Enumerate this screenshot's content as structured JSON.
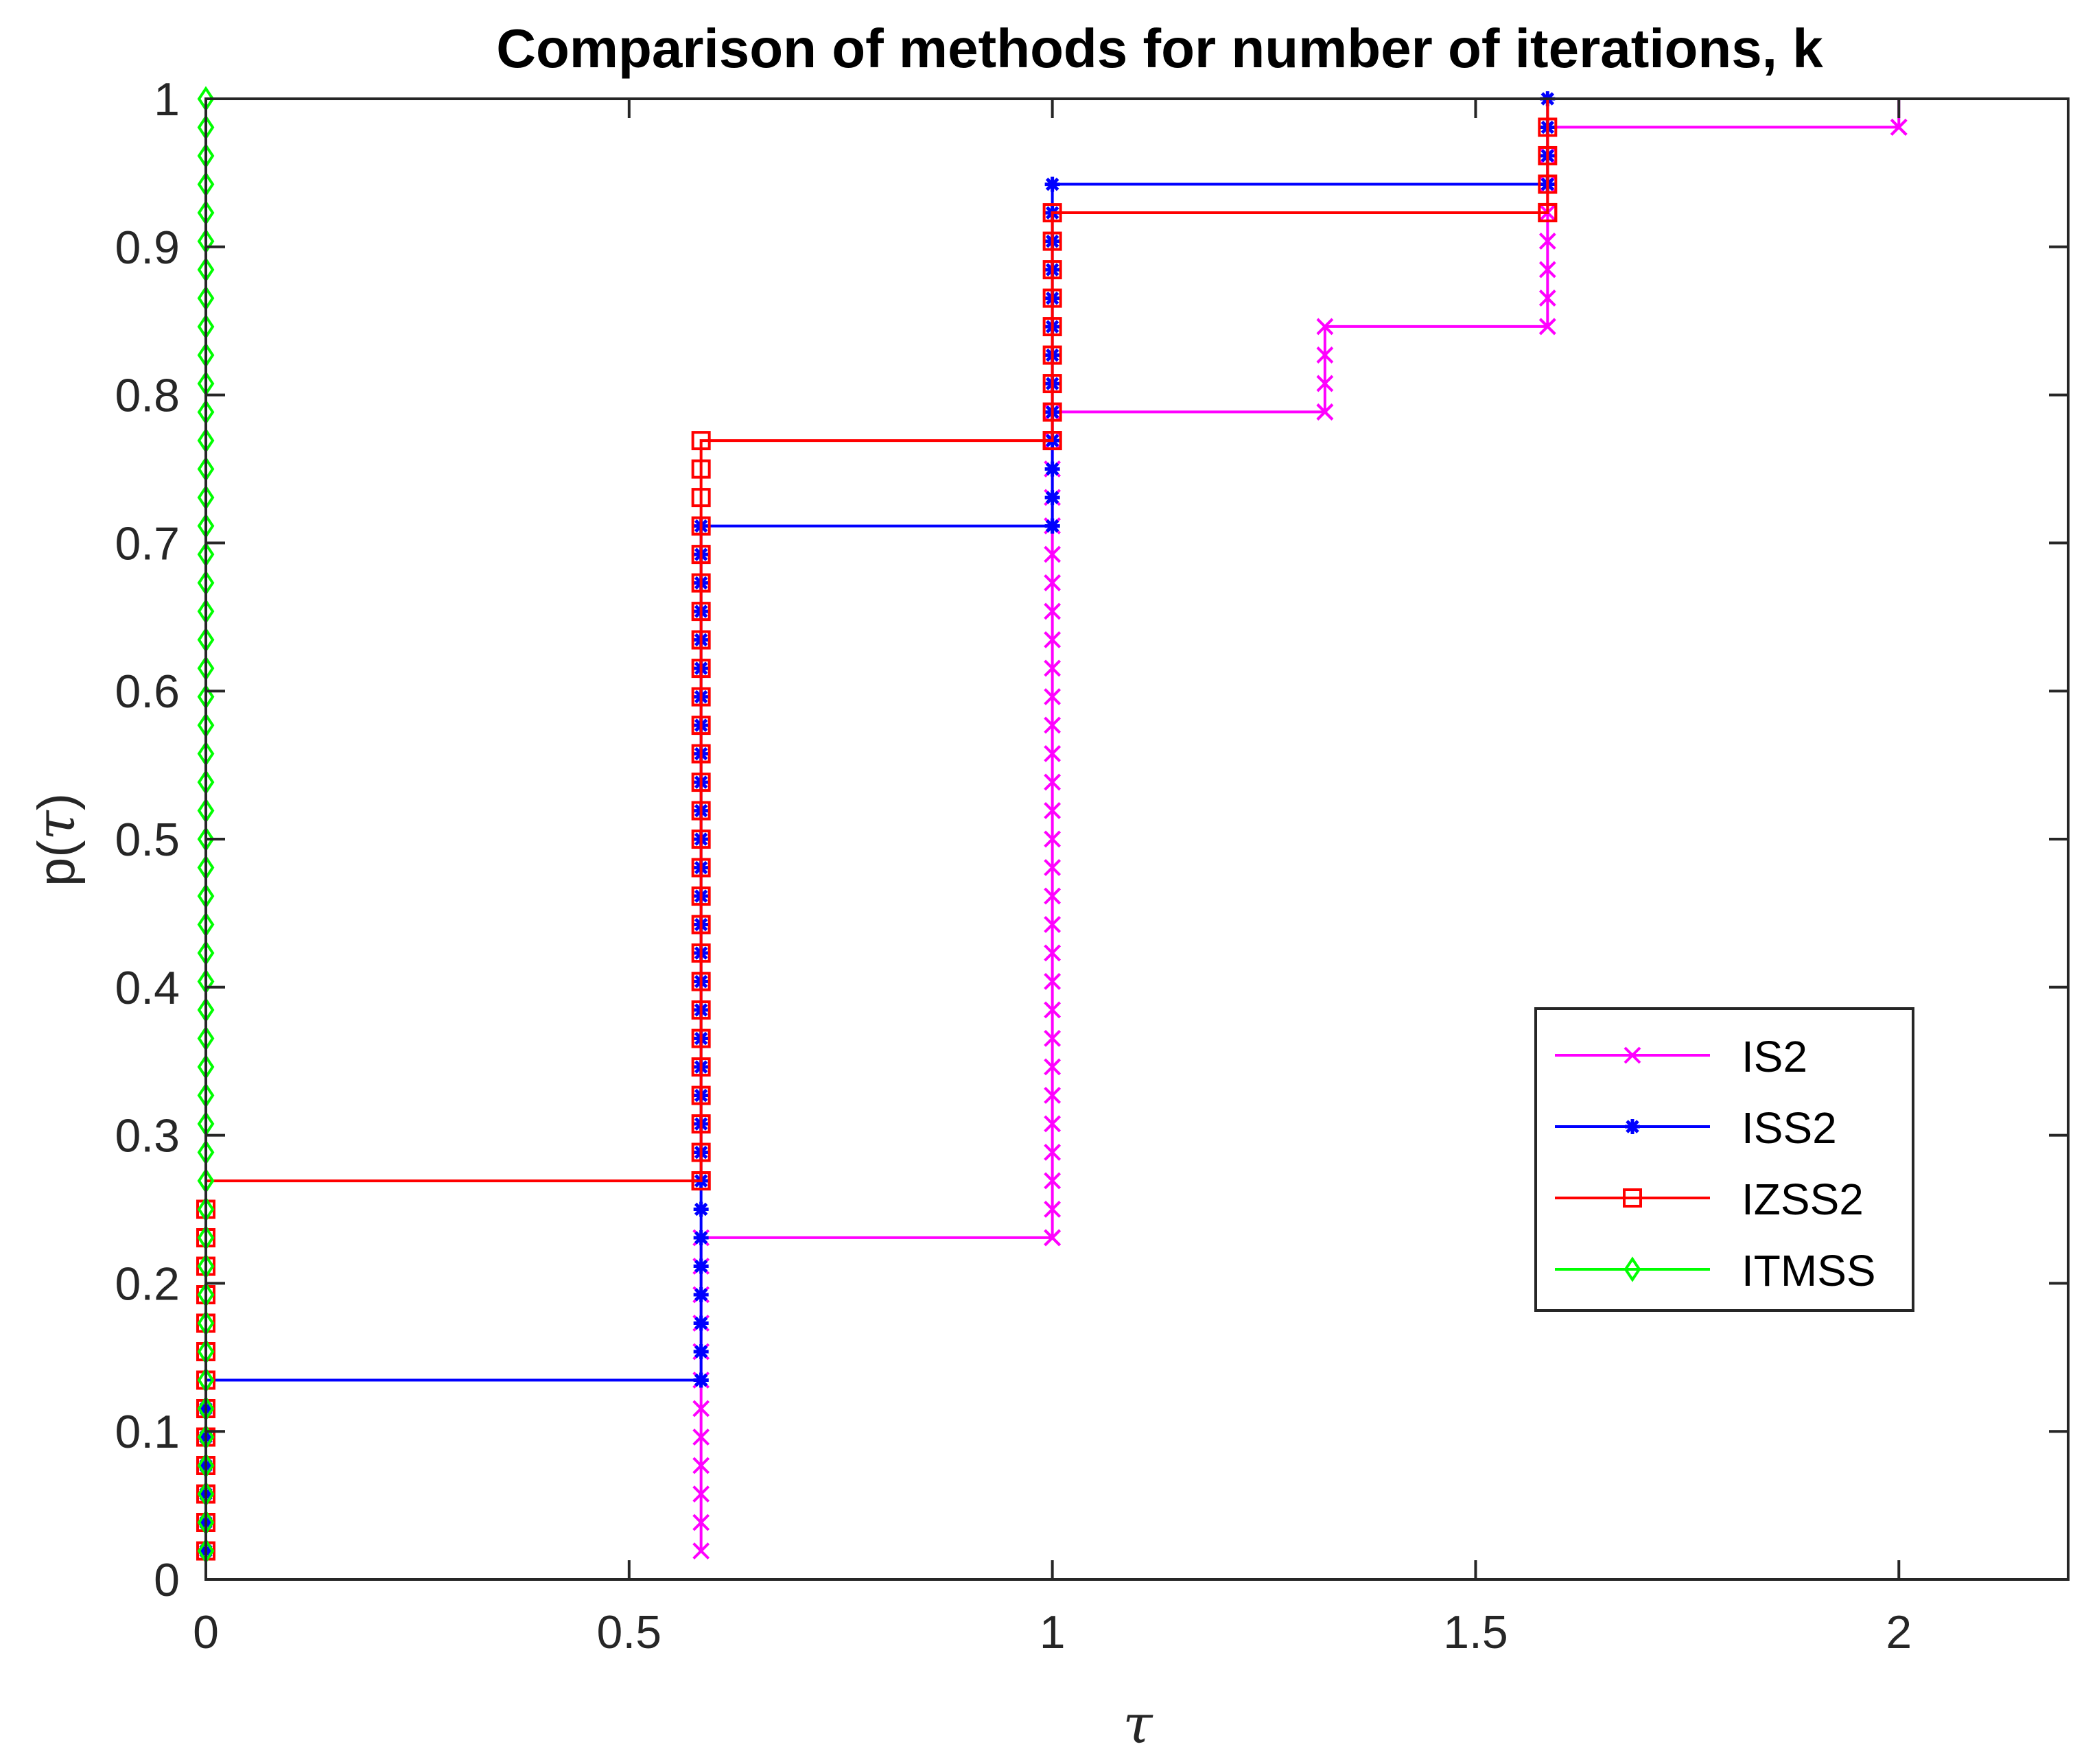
{
  "chart_data": {
    "type": "line",
    "title": "Comparison of methods for number of iterations, k",
    "xlabel": "τ",
    "ylabel_prefix": "p(",
    "ylabel_symbol": "τ",
    "ylabel_suffix": ")",
    "xlim": [
      0,
      2.2
    ],
    "ylim": [
      0,
      1
    ],
    "xticks": [
      0,
      0.5,
      1,
      1.5,
      2
    ],
    "xtick_labels": [
      "0",
      "0.5",
      "1",
      "1.5",
      "2"
    ],
    "yticks": [
      0,
      0.1,
      0.2,
      0.3,
      0.4,
      0.5,
      0.6,
      0.7,
      0.8,
      0.9,
      1
    ],
    "ytick_labels": [
      "0",
      "0.1",
      "0.2",
      "0.3",
      "0.4",
      "0.5",
      "0.6",
      "0.7",
      "0.8",
      "0.9",
      "1"
    ],
    "grid": false,
    "legend_position": "lower-right",
    "step_size": 0.01923,
    "series": [
      {
        "name": "IS2",
        "color": "#ff00ff",
        "marker": "x",
        "x": [
          0.585,
          1.0,
          1.322,
          1.585,
          2.0
        ],
        "y": [
          0.2308,
          0.7885,
          0.8462,
          0.9808,
          1.0
        ]
      },
      {
        "name": "ISS2",
        "color": "#0000ff",
        "marker": "asterisk",
        "x": [
          0,
          0.585,
          1.0,
          1.585
        ],
        "y": [
          0.1346,
          0.7115,
          0.9423,
          1.0
        ]
      },
      {
        "name": "IZSS2",
        "color": "#ff0000",
        "marker": "square",
        "x": [
          0,
          0.585,
          1.0,
          1.585
        ],
        "y": [
          0.2692,
          0.7692,
          0.9231,
          1.0
        ]
      },
      {
        "name": "ITMSS",
        "color": "#00ff00",
        "marker": "diamond",
        "x": [
          0
        ],
        "y": [
          1.0
        ]
      }
    ]
  }
}
